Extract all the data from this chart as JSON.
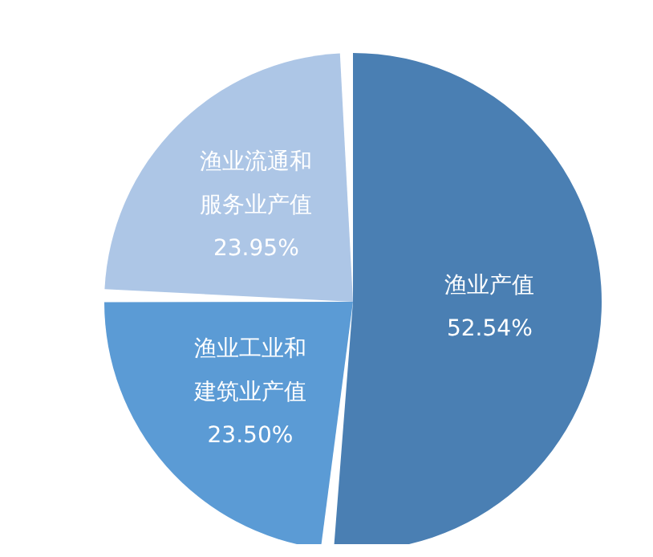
{
  "chart_data": {
    "type": "pie",
    "categories": [
      "渔业产值",
      "渔业工业和建筑业产值",
      "渔业流通和服务业产值"
    ],
    "values": [
      52.54,
      23.5,
      23.95
    ],
    "colors": [
      "#4a7fb3",
      "#5b9bd5",
      "#adc6e6"
    ],
    "value_labels": [
      "52.54%",
      "23.50%",
      "23.95%"
    ],
    "legend": false
  }
}
